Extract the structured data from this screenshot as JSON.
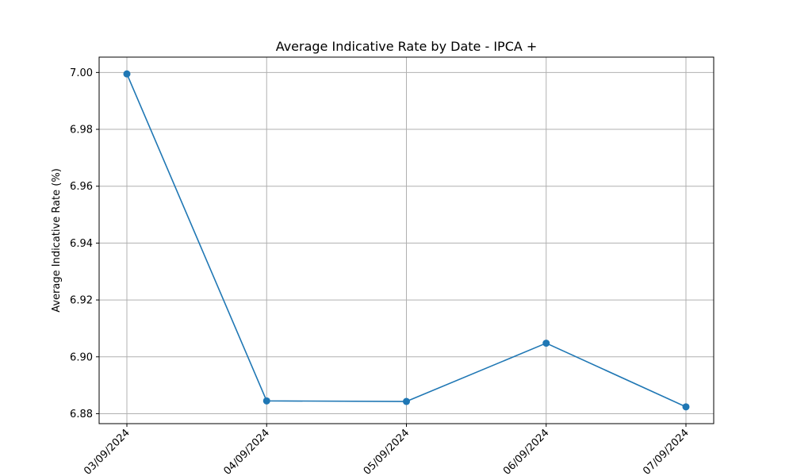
{
  "chart_data": {
    "type": "line",
    "title": "Average Indicative Rate by Date - IPCA +",
    "xlabel": "",
    "ylabel": "Average Indicative Rate (%)",
    "categories": [
      "03/09/2024",
      "04/09/2024",
      "05/09/2024",
      "06/09/2024",
      "07/09/2024"
    ],
    "series": [
      {
        "values": [
          6.9995,
          6.8845,
          6.8843,
          6.9048,
          6.8824
        ],
        "color": "#1f77b4",
        "marker": "circle"
      }
    ],
    "yticks": [
      6.88,
      6.9,
      6.92,
      6.94,
      6.96,
      6.98,
      7.0
    ],
    "ytick_labels": [
      "6.88",
      "6.90",
      "6.92",
      "6.94",
      "6.96",
      "6.98",
      "7.00"
    ],
    "ylim": [
      6.8765,
      7.0054
    ],
    "grid": true,
    "colors": {
      "line": "#1f77b4",
      "grid": "#b0b0b0",
      "frame": "#000000"
    }
  }
}
